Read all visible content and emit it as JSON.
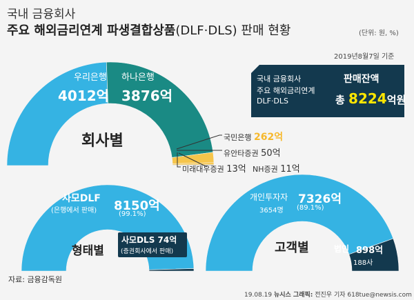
{
  "header": {
    "category": "국내 금융회사",
    "title_main": "주요 해외금리연계 파생결합상품",
    "title_paren": "(DLF·DLS) 판매 현황",
    "unit": "(단위: 원, %)",
    "date": "2019년8월7일 기준"
  },
  "summary": {
    "line1": "국내 금융회사",
    "line2": "주요 해외금리연계",
    "line3": "DLF·DLS",
    "label": "판매잔액",
    "prefix": "총",
    "value": "8224",
    "suffix": "억원"
  },
  "colors": {
    "primary": "#35b3e3",
    "dark": "#1a8a84",
    "highlight": "#f6c54b",
    "gray": "#9aa3aa",
    "navy": "#13394e",
    "accent_yellow": "#ffe600"
  },
  "chart_data": [
    {
      "type": "pie",
      "variant": "half-donut",
      "title": "회사별",
      "series": [
        {
          "name": "우리은행",
          "value": 4012,
          "value_label": "4012억"
        },
        {
          "name": "하나은행",
          "value": 3876,
          "value_label": "3876억"
        },
        {
          "name": "국민은행",
          "value": 262,
          "value_label": "262억"
        },
        {
          "name": "유안타증권",
          "value": 50,
          "value_label": "50억"
        },
        {
          "name": "미래대우증권",
          "value": 13,
          "value_label": "13억"
        },
        {
          "name": "NH증권",
          "value": 11,
          "value_label": "11억"
        }
      ]
    },
    {
      "type": "pie",
      "variant": "half-donut",
      "title": "형태별",
      "series": [
        {
          "name": "사모DLF",
          "sub": "(은행에서 판매)",
          "value": 8150,
          "value_label": "8150억",
          "pct_label": "(99.1%)"
        },
        {
          "name": "사모DLS 74억",
          "sub": "(증권회사에서 판매)",
          "value": 74
        }
      ]
    },
    {
      "type": "pie",
      "variant": "half-donut",
      "title": "고객별",
      "series": [
        {
          "name": "개인투자자",
          "sub": "3654명",
          "value": 7326,
          "value_label": "7326억",
          "pct_label": "(89.1%)"
        },
        {
          "name": "법인",
          "sub": "188사",
          "value": 898,
          "value_label": "898억"
        }
      ]
    }
  ],
  "footer": {
    "source": "자료: 금융감독원",
    "date": "19.08.19",
    "brand": "뉴시스 그래픽:",
    "credit": "전진우 기자 618tue@newsis.com"
  }
}
